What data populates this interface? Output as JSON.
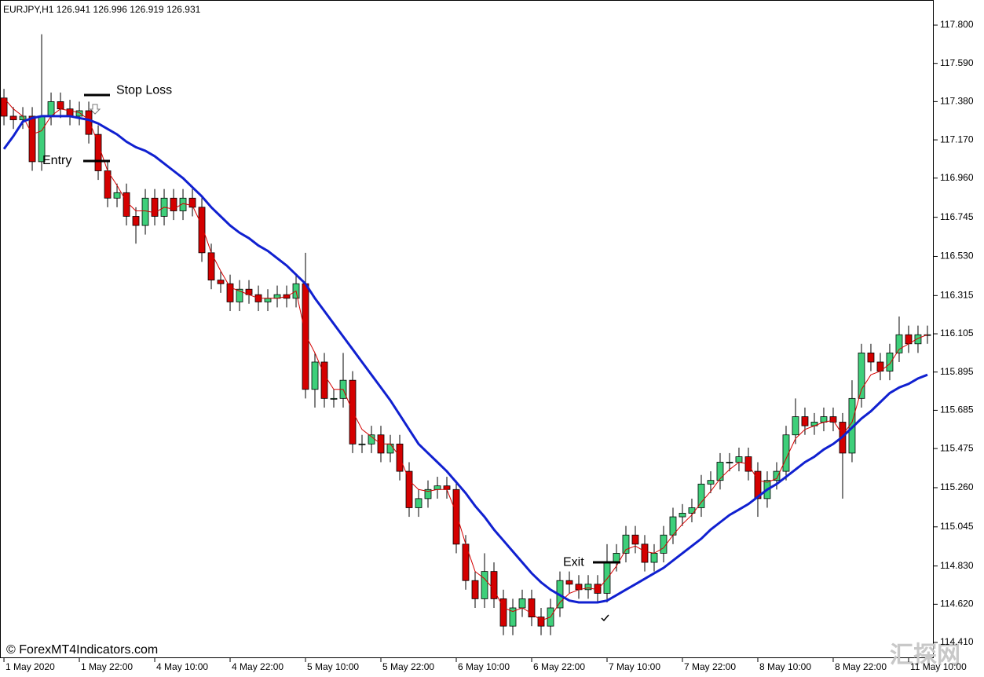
{
  "chart_data": {
    "type": "candlestick",
    "title": "EURJPY,H1 126.941 126.996 126.919 126.931",
    "up_color": "#3ecf7a",
    "down_color": "#d40000",
    "wick_color": "#000000",
    "xlim": [
      -0.42,
      98.67
    ],
    "xticks": [
      {
        "value": 0,
        "label": "1 May 2020"
      },
      {
        "value": 8,
        "label": "1 May 22:00"
      },
      {
        "value": 16,
        "label": "4 May 10:00"
      },
      {
        "value": 24,
        "label": "4 May 22:00"
      },
      {
        "value": 32,
        "label": "5 May 10:00"
      },
      {
        "value": 40,
        "label": "5 May 22:00"
      },
      {
        "value": 48,
        "label": "6 May 10:00"
      },
      {
        "value": 56,
        "label": "6 May 22:00"
      },
      {
        "value": 64,
        "label": "7 May 10:00"
      },
      {
        "value": 72,
        "label": "7 May 22:00"
      },
      {
        "value": 80,
        "label": "8 May 10:00"
      },
      {
        "value": 88,
        "label": "8 May 22:00"
      },
      {
        "value": 96,
        "label": "11 May 10:00"
      }
    ],
    "ylim": [
      114.324,
      117.938
    ],
    "yticks": [
      {
        "value": 117.8,
        "label": "117.800"
      },
      {
        "value": 117.59,
        "label": "117.590"
      },
      {
        "value": 117.38,
        "label": "117.380"
      },
      {
        "value": 117.17,
        "label": "117.170"
      },
      {
        "value": 116.96,
        "label": "116.960"
      },
      116.745,
      {
        "value": 116.53,
        "label": "116.530"
      },
      116.315,
      116.105,
      115.895,
      115.685,
      115.475,
      {
        "value": 115.26,
        "label": "115.260"
      },
      115.045,
      {
        "value": 114.83,
        "label": "114.830"
      },
      {
        "value": 114.62,
        "label": "114.620"
      },
      {
        "value": 114.41,
        "label": "114.410"
      }
    ],
    "open": [
      117.4,
      117.3,
      117.28,
      117.3,
      117.05,
      117.3,
      117.38,
      117.34,
      117.3,
      117.33,
      117.2,
      117.0,
      116.85,
      116.88,
      116.75,
      116.7,
      116.85,
      116.75,
      116.85,
      116.78,
      116.85,
      116.8,
      116.55,
      116.4,
      116.38,
      116.28,
      116.35,
      116.32,
      116.28,
      116.3,
      116.32,
      116.3,
      116.38,
      115.8,
      115.95,
      115.75,
      115.75,
      115.85,
      115.5,
      115.5,
      115.55,
      115.45,
      115.5,
      115.35,
      115.15,
      115.2,
      115.25,
      115.27,
      115.25,
      114.95,
      114.75,
      114.65,
      114.8,
      114.65,
      114.5,
      114.6,
      114.65,
      114.55,
      114.5,
      114.6,
      114.75,
      114.73,
      114.7,
      114.73,
      114.68,
      114.85,
      114.9,
      115.0,
      114.95,
      114.85,
      114.9,
      115.0,
      115.1,
      115.12,
      115.15,
      115.28,
      115.3,
      115.4,
      115.4,
      115.43,
      115.35,
      115.2,
      115.3,
      115.35,
      115.55,
      115.65,
      115.6,
      115.62,
      115.65,
      115.62,
      115.45,
      115.75,
      116.0,
      115.95,
      115.9,
      116.0,
      116.1,
      116.05,
      116.1
    ],
    "high": [
      117.45,
      117.35,
      117.35,
      117.35,
      117.75,
      117.43,
      117.43,
      117.39,
      117.38,
      117.38,
      117.25,
      117.05,
      116.93,
      116.93,
      116.8,
      116.9,
      116.9,
      116.9,
      116.9,
      116.9,
      116.9,
      116.85,
      116.6,
      116.45,
      116.43,
      116.4,
      116.4,
      116.37,
      116.35,
      116.37,
      116.37,
      116.43,
      116.55,
      116.0,
      116.0,
      115.8,
      116.0,
      115.9,
      115.55,
      115.6,
      115.6,
      115.55,
      115.55,
      115.4,
      115.25,
      115.3,
      115.32,
      115.32,
      115.3,
      115.0,
      114.8,
      114.9,
      114.85,
      114.7,
      114.65,
      114.7,
      114.7,
      114.6,
      114.65,
      114.8,
      114.8,
      114.78,
      114.78,
      114.78,
      114.95,
      114.95,
      115.05,
      115.05,
      115.0,
      114.95,
      115.05,
      115.15,
      115.17,
      115.2,
      115.33,
      115.35,
      115.45,
      115.45,
      115.48,
      115.48,
      115.4,
      115.35,
      115.4,
      115.6,
      115.75,
      115.7,
      115.67,
      115.7,
      115.7,
      115.67,
      115.85,
      116.05,
      116.05,
      116.0,
      116.05,
      116.2,
      116.15,
      116.15,
      116.15
    ],
    "low": [
      117.25,
      117.23,
      117.23,
      117.0,
      117.0,
      117.25,
      117.29,
      117.25,
      117.25,
      117.15,
      116.95,
      116.8,
      116.8,
      116.7,
      116.6,
      116.65,
      116.7,
      116.7,
      116.73,
      116.73,
      116.75,
      116.5,
      116.35,
      116.33,
      116.23,
      116.23,
      116.27,
      116.23,
      116.23,
      116.25,
      116.25,
      116.25,
      115.75,
      115.7,
      115.7,
      115.7,
      115.7,
      115.45,
      115.45,
      115.45,
      115.4,
      115.4,
      115.3,
      115.1,
      115.1,
      115.15,
      115.2,
      115.2,
      114.9,
      114.7,
      114.6,
      114.6,
      114.6,
      114.45,
      114.45,
      114.55,
      114.5,
      114.45,
      114.45,
      114.55,
      114.68,
      114.65,
      114.65,
      114.63,
      114.63,
      114.8,
      114.85,
      114.9,
      114.8,
      114.8,
      114.85,
      114.95,
      115.05,
      115.07,
      115.1,
      115.23,
      115.25,
      115.35,
      115.35,
      115.3,
      115.1,
      115.15,
      115.25,
      115.3,
      115.5,
      115.55,
      115.55,
      115.57,
      115.57,
      115.2,
      115.4,
      115.7,
      115.9,
      115.85,
      115.85,
      115.95,
      116.0,
      116.0,
      116.05
    ],
    "close": [
      117.3,
      117.28,
      117.3,
      117.05,
      117.3,
      117.38,
      117.34,
      117.3,
      117.33,
      117.2,
      117.0,
      116.85,
      116.88,
      116.75,
      116.7,
      116.85,
      116.75,
      116.85,
      116.78,
      116.85,
      116.8,
      116.55,
      116.4,
      116.38,
      116.28,
      116.35,
      116.32,
      116.28,
      116.3,
      116.32,
      116.3,
      116.38,
      115.8,
      115.95,
      115.75,
      115.75,
      115.85,
      115.5,
      115.5,
      115.55,
      115.45,
      115.5,
      115.35,
      115.15,
      115.2,
      115.25,
      115.27,
      115.25,
      114.95,
      114.75,
      114.65,
      114.8,
      114.65,
      114.5,
      114.6,
      114.65,
      114.55,
      114.5,
      114.6,
      114.75,
      114.73,
      114.7,
      114.73,
      114.68,
      114.85,
      114.9,
      115.0,
      114.95,
      114.85,
      114.9,
      115.0,
      115.1,
      115.12,
      115.15,
      115.28,
      115.3,
      115.4,
      115.4,
      115.43,
      115.35,
      115.2,
      115.3,
      115.35,
      115.55,
      115.65,
      115.6,
      115.62,
      115.65,
      115.62,
      115.45,
      115.75,
      116.0,
      115.95,
      115.9,
      116.0,
      116.1,
      116.05,
      116.1,
      116.1
    ],
    "lines": [
      {
        "color": "#d40000",
        "width": 1,
        "values": [
          117.4,
          117.34,
          117.3,
          117.2,
          117.22,
          117.3,
          117.34,
          117.33,
          117.32,
          117.28,
          117.15,
          117.0,
          116.92,
          116.83,
          116.78,
          116.78,
          116.77,
          116.8,
          116.79,
          116.82,
          116.81,
          116.7,
          116.55,
          116.45,
          116.36,
          116.34,
          116.32,
          116.3,
          116.3,
          116.3,
          116.31,
          116.34,
          116.1,
          116.0,
          115.88,
          115.8,
          115.8,
          115.68,
          115.58,
          115.54,
          115.5,
          115.5,
          115.43,
          115.3,
          115.25,
          115.24,
          115.25,
          115.25,
          115.12,
          114.95,
          114.8,
          114.76,
          114.7,
          114.6,
          114.58,
          114.6,
          114.57,
          114.53,
          114.55,
          114.63,
          114.68,
          114.7,
          114.71,
          114.7,
          114.76,
          114.83,
          114.92,
          114.94,
          114.91,
          114.9,
          114.93,
          115.0,
          115.06,
          115.11,
          115.18,
          115.24,
          115.31,
          115.36,
          115.4,
          115.39,
          115.3,
          115.29,
          115.31,
          115.42,
          115.53,
          115.58,
          115.6,
          115.62,
          115.63,
          115.55,
          115.62,
          115.8,
          115.88,
          115.9,
          115.94,
          116.02,
          116.05,
          116.08,
          116.1
        ]
      },
      {
        "color": "#1020d0",
        "width": 3,
        "values": [
          117.12,
          117.19,
          117.27,
          117.29,
          117.3,
          117.3,
          117.3,
          117.3,
          117.29,
          117.28,
          117.26,
          117.23,
          117.2,
          117.16,
          117.13,
          117.11,
          117.08,
          117.04,
          117.0,
          116.96,
          116.91,
          116.86,
          116.8,
          116.75,
          116.7,
          116.66,
          116.63,
          116.59,
          116.56,
          116.52,
          116.48,
          116.43,
          116.38,
          116.3,
          116.23,
          116.16,
          116.09,
          116.02,
          115.95,
          115.88,
          115.81,
          115.74,
          115.66,
          115.58,
          115.5,
          115.45,
          115.4,
          115.35,
          115.29,
          115.23,
          115.16,
          115.1,
          115.03,
          114.97,
          114.91,
          114.85,
          114.79,
          114.74,
          114.7,
          114.67,
          114.64,
          114.63,
          114.63,
          114.63,
          114.64,
          114.67,
          114.7,
          114.73,
          114.76,
          114.79,
          114.82,
          114.86,
          114.9,
          114.94,
          114.98,
          115.03,
          115.07,
          115.11,
          115.14,
          115.17,
          115.21,
          115.25,
          115.28,
          115.32,
          115.36,
          115.4,
          115.43,
          115.47,
          115.5,
          115.54,
          115.59,
          115.64,
          115.68,
          115.73,
          115.78,
          115.81,
          115.83,
          115.86,
          115.88
        ]
      }
    ],
    "annotations": [
      {
        "text": "Stop Loss",
        "value": 117.416
      },
      {
        "text": "Entry",
        "value": 117.054
      },
      {
        "text": "Exit",
        "value": 114.85
      }
    ],
    "footer": "© ForexMT4Indicators.com",
    "watermark": "汇探网"
  }
}
